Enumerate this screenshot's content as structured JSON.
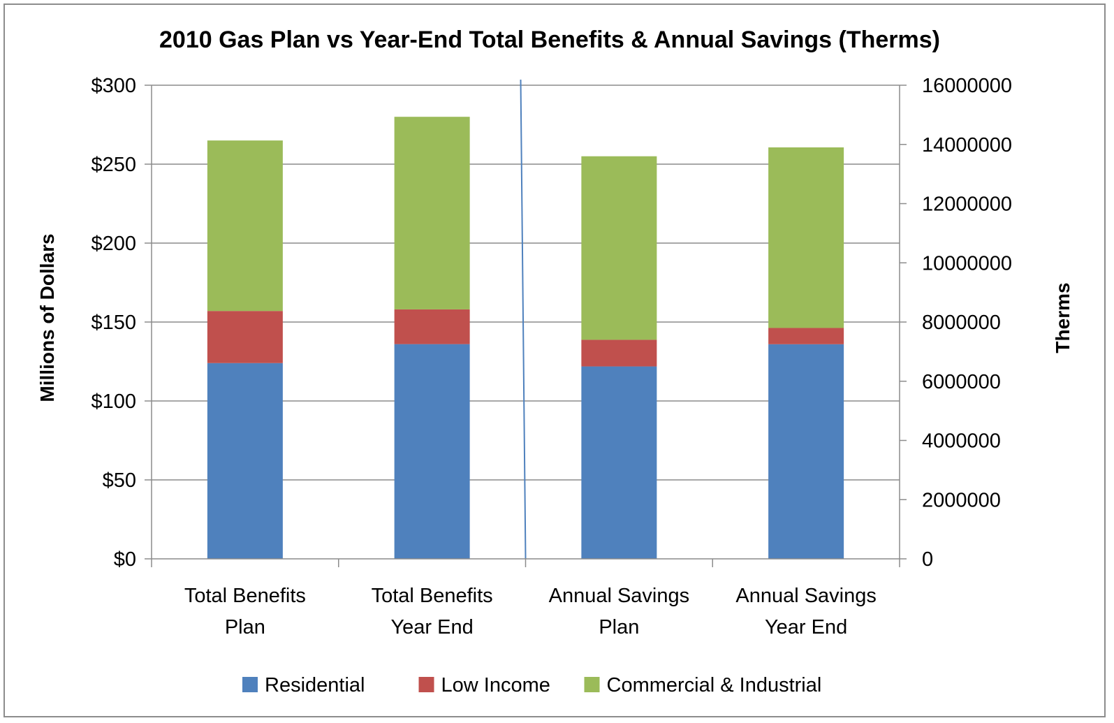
{
  "chart_data": {
    "type": "bar",
    "stacked": true,
    "title": "2010 Gas Plan vs Year-End Total Benefits & Annual Savings (Therms)",
    "categories": [
      [
        "Total Benefits",
        "Plan"
      ],
      [
        "Total Benefits",
        "Year End"
      ],
      [
        "Annual Savings",
        "Plan"
      ],
      [
        "Annual Savings",
        "Year End"
      ]
    ],
    "series": [
      {
        "name": "Residential",
        "color": "#4f81bd",
        "values": [
          124,
          136,
          6500000,
          7250000
        ]
      },
      {
        "name": "Low Income",
        "color": "#c0504d",
        "values": [
          33,
          22,
          900000,
          550000
        ]
      },
      {
        "name": "Commercial & Industrial",
        "color": "#9bbb59",
        "values": [
          108,
          122,
          6200000,
          6100000
        ]
      }
    ],
    "value_axis_by_category": [
      "left",
      "left",
      "right",
      "right"
    ],
    "ylabel": "Millions of Dollars",
    "ylim": [
      0,
      300
    ],
    "yticks": [
      "$0",
      "$50",
      "$100",
      "$150",
      "$200",
      "$250",
      "$300"
    ],
    "y2label": "Therms",
    "y2lim": [
      0,
      16000000
    ],
    "y2ticks": [
      "0",
      "2000000",
      "4000000",
      "6000000",
      "8000000",
      "10000000",
      "12000000",
      "14000000",
      "16000000"
    ],
    "grid": true,
    "legend_position": "bottom",
    "divider_color": "#4f81bd"
  }
}
